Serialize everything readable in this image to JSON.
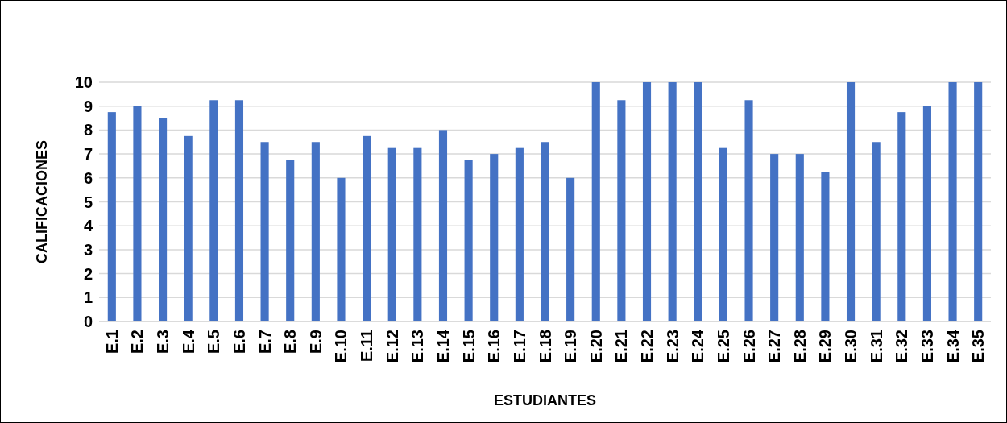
{
  "chart_data": {
    "type": "bar",
    "xlabel": "ESTUDIANTES",
    "ylabel": "CALIFICACIONES",
    "categories": [
      "E.1",
      "E.2",
      "E.3",
      "E.4",
      "E.5",
      "E.6",
      "E.7",
      "E.8",
      "E.9",
      "E.10",
      "E.11",
      "E.12",
      "E.13",
      "E.14",
      "E.15",
      "E.16",
      "E.17",
      "E.18",
      "E.19",
      "E.20",
      "E.21",
      "E.22",
      "E.23",
      "E.24",
      "E.25",
      "E.26",
      "E.27",
      "E.28",
      "E.29",
      "E.30",
      "E.31",
      "E.32",
      "E.33",
      "E.34",
      "E.35"
    ],
    "values": [
      8.75,
      9,
      8.5,
      7.75,
      9.25,
      9.25,
      7.5,
      6.75,
      7.5,
      6,
      7.75,
      7.25,
      7.25,
      8,
      6.75,
      7,
      7.25,
      7.5,
      6,
      10,
      9.25,
      10,
      10,
      10,
      7.25,
      9.25,
      7,
      7,
      6.25,
      10,
      7.5,
      8.75,
      9,
      10,
      10
    ],
    "color": "#4472c4",
    "ylim": [
      0,
      10
    ],
    "yticks": [
      0,
      1,
      2,
      3,
      4,
      5,
      6,
      7,
      8,
      9,
      10
    ],
    "grid": "y"
  }
}
